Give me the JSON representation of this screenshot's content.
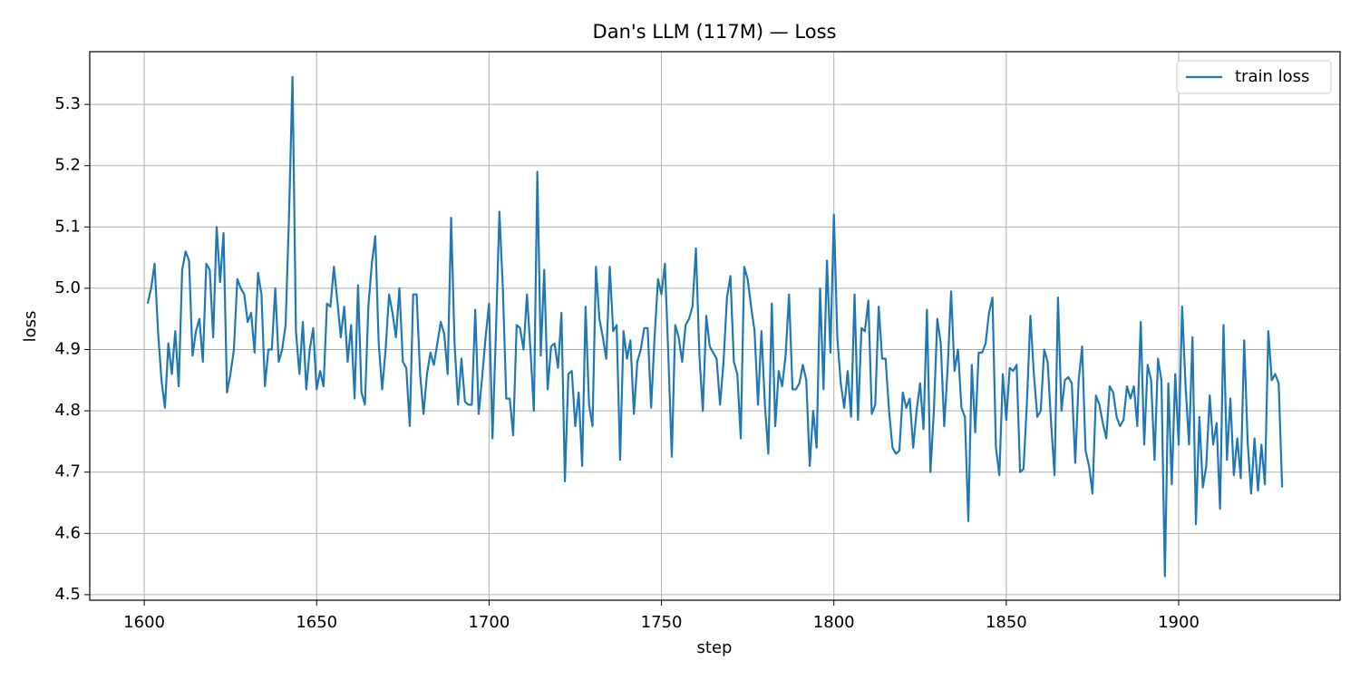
{
  "chart_data": {
    "type": "line",
    "title": "Dan's LLM (117M) — Loss",
    "x_label": "step",
    "y_label": "loss",
    "x": [
      1601,
      1602,
      1603,
      1604,
      1605,
      1606,
      1607,
      1608,
      1609,
      1610,
      1611,
      1612,
      1613,
      1614,
      1615,
      1616,
      1617,
      1618,
      1619,
      1620,
      1621,
      1622,
      1623,
      1624,
      1625,
      1626,
      1627,
      1628,
      1629,
      1630,
      1631,
      1632,
      1633,
      1634,
      1635,
      1636,
      1637,
      1638,
      1639,
      1640,
      1641,
      1642,
      1643,
      1644,
      1645,
      1646,
      1647,
      1648,
      1649,
      1650,
      1651,
      1652,
      1653,
      1654,
      1655,
      1656,
      1657,
      1658,
      1659,
      1660,
      1661,
      1662,
      1663,
      1664,
      1665,
      1666,
      1667,
      1668,
      1669,
      1670,
      1671,
      1672,
      1673,
      1674,
      1675,
      1676,
      1677,
      1678,
      1679,
      1680,
      1681,
      1682,
      1683,
      1684,
      1685,
      1686,
      1687,
      1688,
      1689,
      1690,
      1691,
      1692,
      1693,
      1694,
      1695,
      1696,
      1697,
      1698,
      1699,
      1700,
      1701,
      1702,
      1703,
      1704,
      1705,
      1706,
      1707,
      1708,
      1709,
      1710,
      1711,
      1712,
      1713,
      1714,
      1715,
      1716,
      1717,
      1718,
      1719,
      1720,
      1721,
      1722,
      1723,
      1724,
      1725,
      1726,
      1727,
      1728,
      1729,
      1730,
      1731,
      1732,
      1733,
      1734,
      1735,
      1736,
      1737,
      1738,
      1739,
      1740,
      1741,
      1742,
      1743,
      1744,
      1745,
      1746,
      1747,
      1748,
      1749,
      1750,
      1751,
      1752,
      1753,
      1754,
      1755,
      1756,
      1757,
      1758,
      1759,
      1760,
      1761,
      1762,
      1763,
      1764,
      1765,
      1766,
      1767,
      1768,
      1769,
      1770,
      1771,
      1772,
      1773,
      1774,
      1775,
      1776,
      1777,
      1778,
      1779,
      1780,
      1781,
      1782,
      1783,
      1784,
      1785,
      1786,
      1787,
      1788,
      1789,
      1790,
      1791,
      1792,
      1793,
      1794,
      1795,
      1796,
      1797,
      1798,
      1799,
      1800,
      1801,
      1802,
      1803,
      1804,
      1805,
      1806,
      1807,
      1808,
      1809,
      1810,
      1811,
      1812,
      1813,
      1814,
      1815,
      1816,
      1817,
      1818,
      1819,
      1820,
      1821,
      1822,
      1823,
      1824,
      1825,
      1826,
      1827,
      1828,
      1829,
      1830,
      1831,
      1832,
      1833,
      1834,
      1835,
      1836,
      1837,
      1838,
      1839,
      1840,
      1841,
      1842,
      1843,
      1844,
      1845,
      1846,
      1847,
      1848,
      1849,
      1850,
      1851,
      1852,
      1853,
      1854,
      1855,
      1856,
      1857,
      1858,
      1859,
      1860,
      1861,
      1862,
      1863,
      1864,
      1865,
      1866,
      1867,
      1868,
      1869,
      1870,
      1871,
      1872,
      1873,
      1874,
      1875,
      1876,
      1877,
      1878,
      1879,
      1880,
      1881,
      1882,
      1883,
      1884,
      1885,
      1886,
      1887,
      1888,
      1889,
      1890,
      1891,
      1892,
      1893,
      1894,
      1895,
      1896,
      1897,
      1898,
      1899,
      1900,
      1901,
      1902,
      1903,
      1904,
      1905,
      1906,
      1907,
      1908,
      1909,
      1910,
      1911,
      1912,
      1913,
      1914,
      1915,
      1916,
      1917,
      1918,
      1919,
      1920,
      1921,
      1922,
      1923,
      1924,
      1925,
      1926,
      1927,
      1928,
      1929,
      1930
    ],
    "series": [
      {
        "name": "train loss",
        "color": "#1f77b4",
        "values": [
          4.975,
          5.0,
          5.04,
          4.93,
          4.85,
          4.805,
          4.91,
          4.86,
          4.93,
          4.84,
          5.03,
          5.06,
          5.045,
          4.89,
          4.93,
          4.95,
          4.88,
          5.04,
          5.03,
          4.92,
          5.1,
          5.01,
          5.09,
          4.83,
          4.86,
          4.9,
          5.015,
          5.0,
          4.99,
          4.945,
          4.96,
          4.895,
          5.025,
          4.99,
          4.84,
          4.9,
          4.9,
          5.0,
          4.88,
          4.9,
          4.94,
          5.12,
          5.345,
          4.93,
          4.86,
          4.945,
          4.835,
          4.9,
          4.935,
          4.835,
          4.865,
          4.84,
          4.975,
          4.97,
          5.035,
          4.98,
          4.92,
          4.97,
          4.88,
          4.94,
          4.82,
          5.005,
          4.83,
          4.81,
          4.97,
          5.04,
          5.085,
          4.91,
          4.835,
          4.9,
          4.99,
          4.96,
          4.92,
          5.0,
          4.88,
          4.87,
          4.775,
          4.99,
          4.99,
          4.86,
          4.795,
          4.86,
          4.895,
          4.875,
          4.91,
          4.945,
          4.925,
          4.86,
          5.115,
          4.91,
          4.81,
          4.885,
          4.815,
          4.81,
          4.81,
          4.965,
          4.795,
          4.855,
          4.92,
          4.975,
          4.755,
          4.93,
          5.125,
          5.0,
          4.82,
          4.82,
          4.76,
          4.94,
          4.935,
          4.9,
          4.99,
          4.9,
          4.8,
          5.19,
          4.89,
          5.03,
          4.835,
          4.905,
          4.91,
          4.87,
          4.96,
          4.685,
          4.86,
          4.865,
          4.775,
          4.83,
          4.71,
          4.97,
          4.81,
          4.775,
          5.035,
          4.95,
          4.92,
          4.885,
          5.035,
          4.93,
          4.94,
          4.72,
          4.93,
          4.885,
          4.915,
          4.795,
          4.88,
          4.9,
          4.935,
          4.935,
          4.805,
          4.92,
          5.015,
          4.99,
          5.04,
          4.89,
          4.725,
          4.94,
          4.92,
          4.88,
          4.94,
          4.95,
          4.97,
          5.065,
          4.89,
          4.8,
          4.955,
          4.905,
          4.895,
          4.885,
          4.81,
          4.88,
          4.985,
          5.02,
          4.88,
          4.86,
          4.755,
          5.035,
          5.015,
          4.97,
          4.93,
          4.81,
          4.93,
          4.81,
          4.73,
          4.975,
          4.775,
          4.865,
          4.84,
          4.89,
          4.99,
          4.835,
          4.835,
          4.845,
          4.875,
          4.85,
          4.71,
          4.8,
          4.74,
          5.0,
          4.835,
          5.045,
          4.895,
          5.12,
          4.92,
          4.845,
          4.805,
          4.865,
          4.79,
          4.99,
          4.785,
          4.935,
          4.93,
          4.98,
          4.795,
          4.81,
          4.97,
          4.885,
          4.885,
          4.8,
          4.74,
          4.73,
          4.735,
          4.83,
          4.805,
          4.82,
          4.74,
          4.8,
          4.845,
          4.77,
          4.965,
          4.7,
          4.8,
          4.95,
          4.91,
          4.775,
          4.87,
          4.995,
          4.865,
          4.9,
          4.805,
          4.79,
          4.62,
          4.875,
          4.765,
          4.895,
          4.895,
          4.91,
          4.96,
          4.985,
          4.74,
          4.695,
          4.86,
          4.785,
          4.87,
          4.865,
          4.875,
          4.7,
          4.705,
          4.815,
          4.955,
          4.86,
          4.79,
          4.8,
          4.9,
          4.88,
          4.78,
          4.695,
          4.985,
          4.8,
          4.85,
          4.855,
          4.845,
          4.715,
          4.85,
          4.905,
          4.735,
          4.71,
          4.665,
          4.825,
          4.81,
          4.78,
          4.755,
          4.84,
          4.83,
          4.79,
          4.775,
          4.785,
          4.84,
          4.82,
          4.84,
          4.775,
          4.945,
          4.745,
          4.875,
          4.85,
          4.72,
          4.885,
          4.85,
          4.53,
          4.845,
          4.68,
          4.86,
          4.745,
          4.97,
          4.84,
          4.745,
          4.92,
          4.615,
          4.79,
          4.675,
          4.71,
          4.825,
          4.745,
          4.78,
          4.64,
          4.94,
          4.72,
          4.82,
          4.695,
          4.755,
          4.69,
          4.915,
          4.75,
          4.665,
          4.755,
          4.67,
          4.745,
          4.68,
          4.93,
          4.85,
          4.86,
          4.845,
          4.675
        ]
      }
    ],
    "xlim": [
      1584.2,
      1946.8
    ],
    "ylim": [
      4.491,
      5.386
    ],
    "xticks": [
      1600,
      1650,
      1700,
      1750,
      1800,
      1850,
      1900
    ],
    "yticks": [
      4.5,
      4.6,
      4.7,
      4.8,
      4.9,
      {
        "value": 5.0,
        "label": "5.0"
      },
      5.1,
      5.2,
      5.3
    ],
    "grid": true,
    "legend": "upper right"
  }
}
